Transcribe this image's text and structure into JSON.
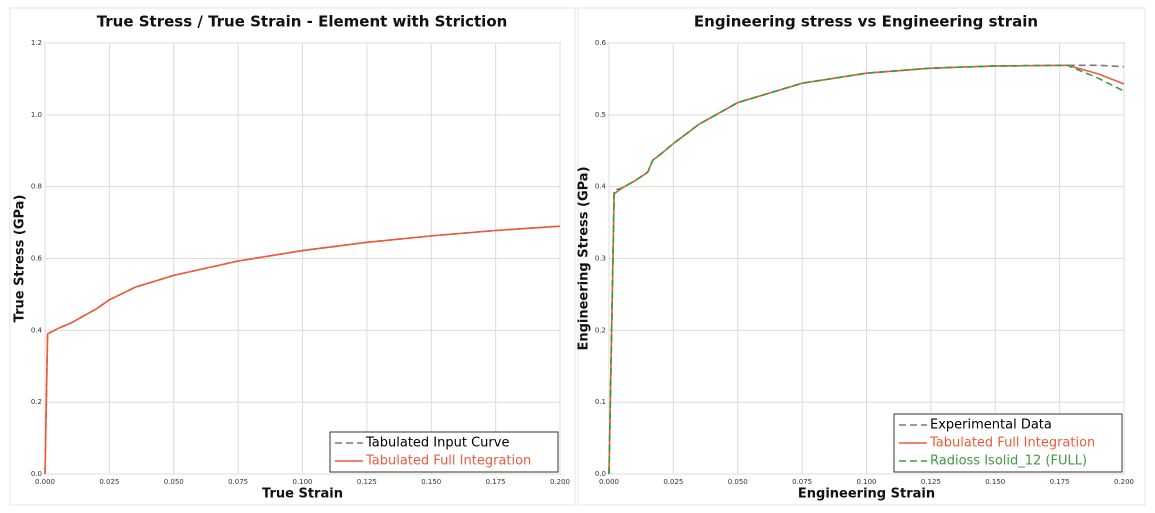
{
  "chart_data": [
    {
      "type": "line",
      "title": "True Stress / True Strain - Element with Striction",
      "xlabel": "True Strain",
      "ylabel": "True Stress (GPa)",
      "x": [
        0,
        0.001,
        0.005,
        0.01,
        0.015,
        0.02,
        0.025,
        0.035,
        0.05,
        0.075,
        0.1,
        0.125,
        0.15,
        0.175,
        0.2
      ],
      "series": [
        {
          "name": "Tabulated Input Curve",
          "color": "#7a7a7a",
          "label_color": "#000000",
          "dashed": true,
          "values": [
            0,
            0.39,
            0.405,
            0.42,
            0.44,
            0.46,
            0.485,
            0.52,
            0.553,
            0.593,
            0.622,
            0.645,
            0.663,
            0.678,
            0.69
          ]
        },
        {
          "name": "Tabulated Full Integration",
          "color": "#f05a3c",
          "label_color": "#f05a3c",
          "dashed": false,
          "values": [
            0,
            0.39,
            0.405,
            0.42,
            0.44,
            0.46,
            0.485,
            0.52,
            0.553,
            0.593,
            0.622,
            0.645,
            0.663,
            0.678,
            0.69
          ]
        }
      ],
      "xlim": [
        0,
        0.2
      ],
      "xticks": [
        {
          "value": 0,
          "label": "0.000"
        },
        0.025,
        {
          "value": 0.05,
          "label": "0.050"
        },
        0.075,
        {
          "value": 0.1,
          "label": "0.100"
        },
        0.125,
        {
          "value": 0.15,
          "label": "0.150"
        },
        0.175,
        {
          "value": 0.2,
          "label": "0.200"
        }
      ],
      "ylim": [
        0,
        1.2
      ],
      "yticks": [
        {
          "value": 0,
          "label": "0.0"
        },
        0.2,
        0.4,
        0.6,
        0.8,
        {
          "value": 1,
          "label": "1.0"
        },
        1.2
      ],
      "grid": true,
      "legend": "lower right"
    },
    {
      "type": "line",
      "title": "Engineering stress vs Engineering strain",
      "xlabel": "Engineering Strain",
      "ylabel": "Engineering Stress (GPa)",
      "x": [
        0,
        0.002,
        0.005,
        0.01,
        0.015,
        0.017,
        0.02,
        0.025,
        0.035,
        0.05,
        0.075,
        0.1,
        0.125,
        0.15,
        0.178,
        0.19,
        0.2
      ],
      "series": [
        {
          "name": "Experimental Data",
          "color": "#7a7a7a",
          "label_color": "#000000",
          "dashed": true,
          "values": [
            0,
            0.39,
            0.398,
            0.408,
            0.42,
            0.437,
            0.445,
            0.46,
            0.487,
            0.517,
            0.544,
            0.558,
            0.565,
            0.568,
            0.569,
            0.569,
            0.567
          ]
        },
        {
          "name": "Tabulated Full Integration",
          "color": "#f05a3c",
          "label_color": "#f05a3c",
          "dashed": false,
          "values": [
            0,
            0.39,
            0.398,
            0.408,
            0.42,
            0.437,
            0.445,
            0.46,
            0.487,
            0.517,
            0.544,
            0.558,
            0.565,
            0.568,
            0.569,
            0.557,
            0.543
          ]
        },
        {
          "name": "Radioss Isolid_12 (FULL)",
          "color": "#3f9a3f",
          "label_color": "#3f9a3f",
          "dashed": true,
          "values": [
            0,
            0.395,
            0.398,
            0.408,
            0.42,
            0.437,
            0.445,
            0.46,
            0.487,
            0.517,
            0.544,
            0.558,
            0.565,
            0.568,
            0.569,
            0.551,
            0.533
          ]
        }
      ],
      "xlim": [
        0,
        0.2
      ],
      "xticks": [
        {
          "value": 0,
          "label": "0.000"
        },
        0.025,
        {
          "value": 0.05,
          "label": "0.050"
        },
        0.075,
        {
          "value": 0.1,
          "label": "0.100"
        },
        0.125,
        {
          "value": 0.15,
          "label": "0.150"
        },
        0.175,
        {
          "value": 0.2,
          "label": "0.200"
        }
      ],
      "ylim": [
        0,
        0.6
      ],
      "yticks": [
        {
          "value": 0,
          "label": "0.0"
        },
        0.1,
        0.2,
        0.3,
        0.4,
        0.5,
        0.6
      ],
      "grid": true,
      "legend": "lower right"
    }
  ]
}
